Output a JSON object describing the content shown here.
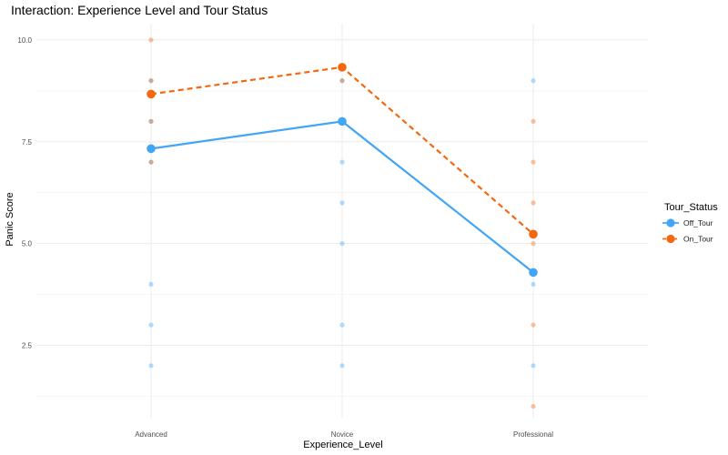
{
  "chart_data": {
    "type": "line",
    "title": "Interaction: Experience Level and Tour Status",
    "xlabel": "Experience_Level",
    "ylabel": "Panic Score",
    "categories": [
      "Advanced",
      "Novice",
      "Professional"
    ],
    "yticks": [
      "2.5",
      "5.0",
      "7.5",
      "10.0"
    ],
    "ylim": [
      0.7,
      10.4
    ],
    "legend": {
      "title": "Tour_Status",
      "position": "right"
    },
    "grid": true,
    "series": [
      {
        "name": "Off_Tour",
        "color": "#42a5f5",
        "line_style": "solid",
        "means": [
          7.33,
          8.0,
          4.29
        ],
        "points": [
          [
            2,
            3,
            4,
            7,
            8,
            9
          ],
          [
            2,
            3,
            5,
            6,
            7,
            8,
            9
          ],
          [
            2,
            4,
            9
          ]
        ]
      },
      {
        "name": "On_Tour",
        "color": "#f4670f",
        "line_style": "dashed",
        "means": [
          8.67,
          9.33,
          5.23
        ],
        "points": [
          [
            7,
            8,
            9,
            10
          ],
          [
            9
          ],
          [
            1,
            3,
            5,
            6,
            7,
            8
          ]
        ]
      }
    ]
  }
}
